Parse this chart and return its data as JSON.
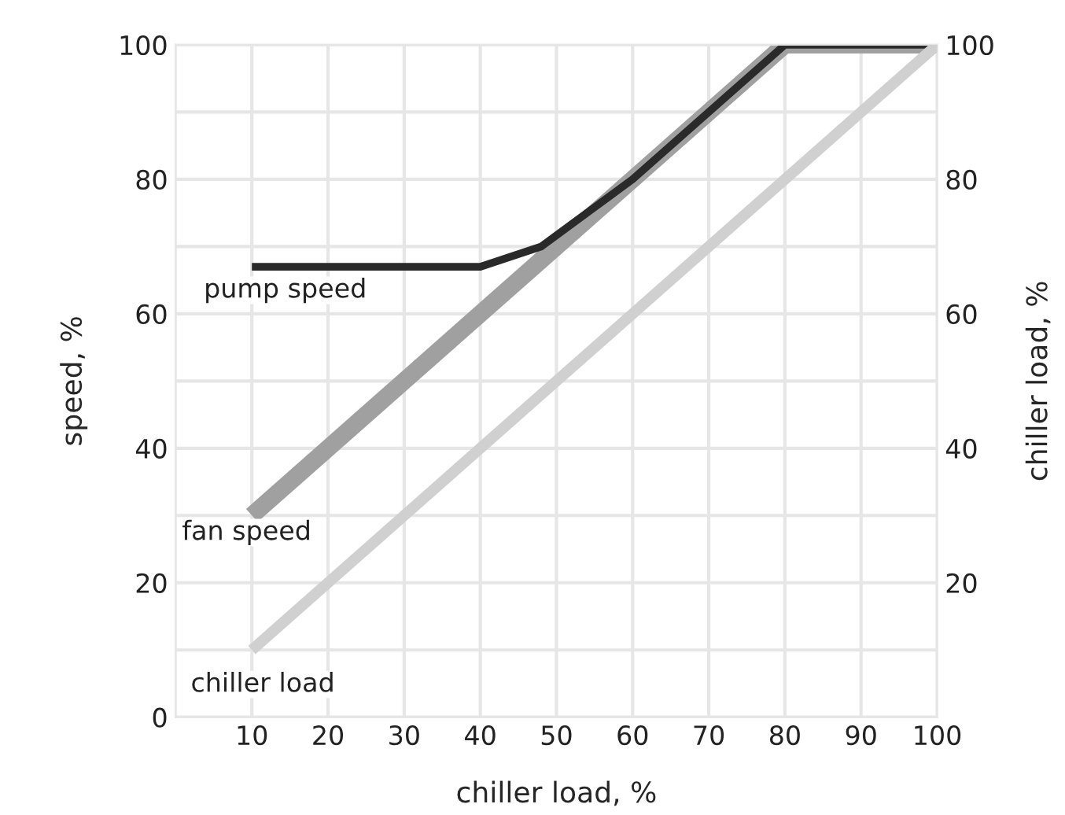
{
  "chart_data": {
    "type": "line",
    "xlabel": "chiller load, %",
    "ylabel": "speed, %",
    "y2label": "chiller load, %",
    "xlim": [
      0,
      100
    ],
    "xticks": [
      10,
      20,
      30,
      40,
      50,
      60,
      70,
      80,
      90,
      100
    ],
    "ylim": [
      0,
      100
    ],
    "yticks": [
      0,
      {
        "value": 10,
        "label": null
      },
      20,
      {
        "value": 30,
        "label": null
      },
      40,
      {
        "value": 50,
        "label": null
      },
      60,
      {
        "value": 70,
        "label": null
      },
      80,
      {
        "value": 90,
        "label": null
      },
      100
    ],
    "y2lim": [
      0,
      100
    ],
    "y2ticks": [
      20,
      40,
      60,
      80,
      100
    ],
    "grid": true,
    "legend": false,
    "marker": "none",
    "line_style": "solid",
    "series": [
      {
        "name": "chiller load",
        "color": "#d0d0d0",
        "axis": "y2",
        "x": [
          10,
          100
        ],
        "values": [
          10,
          100
        ]
      },
      {
        "name": "fan speed",
        "color": "#a0a0a0",
        "x": [
          10,
          50,
          80,
          100
        ],
        "values": [
          30,
          70,
          100,
          100
        ]
      },
      {
        "name": "pump speed",
        "color": "#2a2a2a",
        "x": [
          10,
          40,
          48,
          60,
          80,
          100
        ],
        "values": [
          67,
          67,
          70,
          80,
          100,
          100
        ]
      }
    ]
  }
}
